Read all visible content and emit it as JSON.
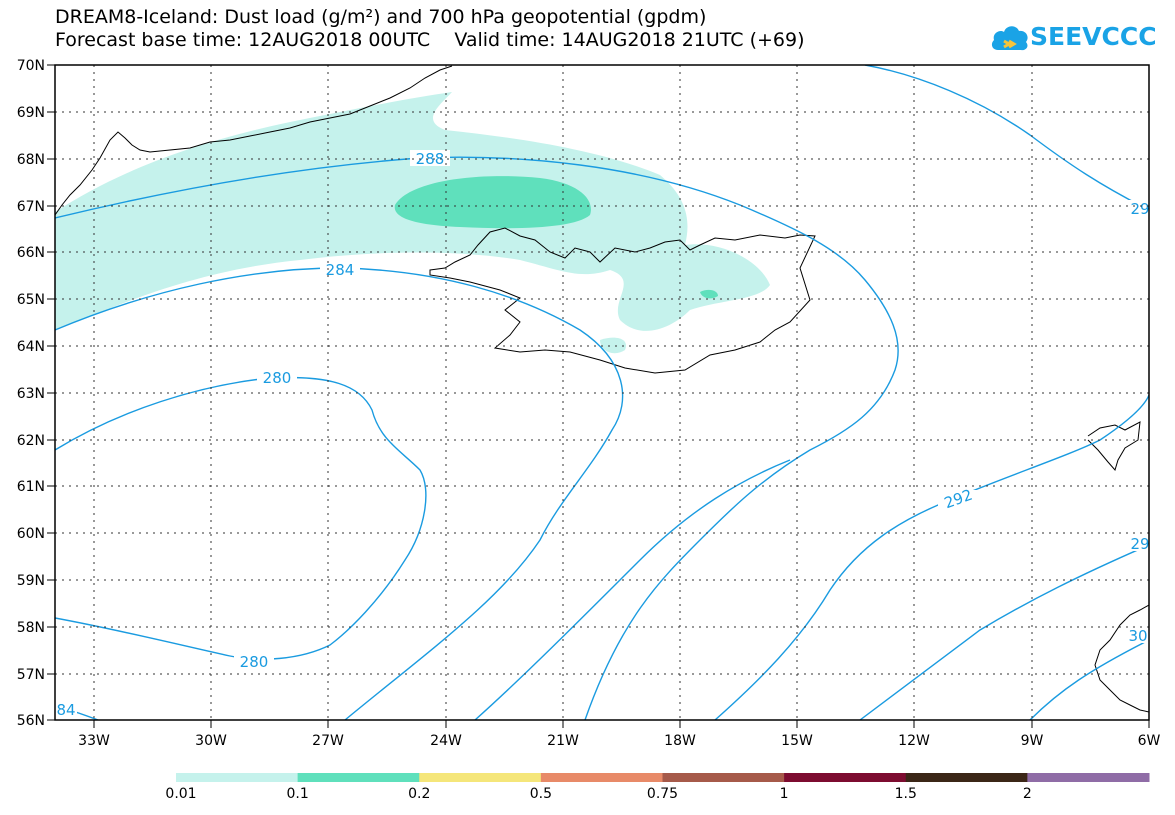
{
  "header": {
    "title_line1": "DREAM8-Iceland: Dust load (g/m²) and 700 hPa geopotential (gpdm)",
    "title_line2": "Forecast base time: 12AUG2018 00UTC    Valid time: 14AUG2018 21UTC (+69)"
  },
  "logo": {
    "text": "SEEVCCC",
    "icon": "cloud-icon",
    "color": "#1aa3e6"
  },
  "axes": {
    "lat_labels": [
      "70N",
      "69N",
      "68N",
      "67N",
      "66N",
      "65N",
      "64N",
      "63N",
      "62N",
      "61N",
      "60N",
      "59N",
      "58N",
      "57N",
      "56N"
    ],
    "lon_labels": [
      "33W",
      "30W",
      "27W",
      "24W",
      "21W",
      "18W",
      "15W",
      "12W",
      "9W",
      "6W"
    ]
  },
  "contour_labels": [
    {
      "text": "288"
    },
    {
      "text": "284"
    },
    {
      "text": "280"
    },
    {
      "text": "280"
    },
    {
      "text": "292"
    },
    {
      "text": "29"
    },
    {
      "text": "29"
    },
    {
      "text": "30"
    },
    {
      "text": "84"
    }
  ],
  "colorbar": {
    "labels": [
      "0.01",
      "0.1",
      "0.2",
      "0.5",
      "0.75",
      "1",
      "1.5",
      "2"
    ],
    "colors": [
      "#c5f2ec",
      "#5fe0bc",
      "#f5e67a",
      "#e88a68",
      "#a65a4a",
      "#7d0c30",
      "#3b2617",
      "#8f6ca6"
    ]
  },
  "colors": {
    "contour": "#1a9be0",
    "coast": "#000000",
    "dust_light": "#c5f2ec",
    "dust_mid": "#5fe0bc"
  }
}
